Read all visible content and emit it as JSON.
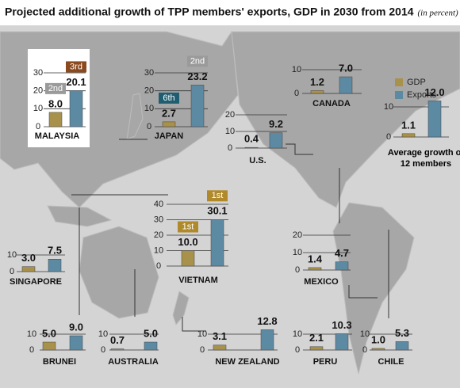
{
  "title": "Projected additional growth of TPP members' exports, GDP in 2030 from 2014",
  "subtitle": "(in percent)",
  "legend": {
    "categories": [
      "GDP",
      "Exports"
    ],
    "colors": [
      "#a8914a",
      "#5d8aa3"
    ]
  },
  "chart_data": [
    {
      "type": "bar",
      "title": "MALAYSIA",
      "values": [
        8.0,
        20.1
      ],
      "value_labels": [
        "8.0",
        "20.1"
      ],
      "ylim": [
        0,
        30
      ],
      "yticks": [
        0,
        10,
        20,
        30
      ],
      "rank_labels": [
        "2nd",
        "3rd"
      ],
      "rank_colors": [
        "#9a9a9a",
        "#8b4a1e"
      ]
    },
    {
      "type": "bar",
      "title": "JAPAN",
      "values": [
        2.7,
        23.2
      ],
      "value_labels": [
        "2.7",
        "23.2"
      ],
      "ylim": [
        0,
        30
      ],
      "yticks": [
        0,
        10,
        20,
        30
      ],
      "rank_labels": [
        "6th",
        "2nd"
      ],
      "rank_colors": [
        "#1f5d70",
        "#9a9a9a"
      ]
    },
    {
      "type": "bar",
      "title": "CANADA",
      "values": [
        1.2,
        7.0
      ],
      "value_labels": [
        "1.2",
        "7.0"
      ],
      "ylim": [
        0,
        10
      ],
      "yticks": [
        0,
        10
      ]
    },
    {
      "type": "bar",
      "title": "Average growth of 12 members",
      "values": [
        1.1,
        12.0
      ],
      "value_labels": [
        "1.1",
        "12.0"
      ],
      "ylim": [
        0,
        13
      ],
      "yticks": [
        0,
        10
      ]
    },
    {
      "type": "bar",
      "title": "U.S.",
      "values": [
        0.4,
        9.2
      ],
      "value_labels": [
        "0.4",
        "9.2"
      ],
      "ylim": [
        0,
        20
      ],
      "yticks": [
        0,
        10,
        20
      ]
    },
    {
      "type": "bar",
      "title": "SINGAPORE",
      "values": [
        3.0,
        7.5
      ],
      "value_labels": [
        "3.0",
        "7.5"
      ],
      "ylim": [
        0,
        10
      ],
      "yticks": [
        0,
        10
      ]
    },
    {
      "type": "bar",
      "title": "VIETNAM",
      "values": [
        10.0,
        30.1
      ],
      "value_labels": [
        "10.0",
        "30.1"
      ],
      "ylim": [
        0,
        40
      ],
      "yticks": [
        0,
        10,
        20,
        30,
        40
      ],
      "rank_labels": [
        "1st",
        "1st"
      ],
      "rank_colors": [
        "#b08a2a",
        "#b08a2a"
      ]
    },
    {
      "type": "bar",
      "title": "MEXICO",
      "values": [
        1.4,
        4.7
      ],
      "value_labels": [
        "1.4",
        "4.7"
      ],
      "ylim": [
        0,
        20
      ],
      "yticks": [
        0,
        10,
        20
      ]
    },
    {
      "type": "bar",
      "title": "BRUNEI",
      "values": [
        5.0,
        9.0
      ],
      "value_labels": [
        "5.0",
        "9.0"
      ],
      "ylim": [
        0,
        10
      ],
      "yticks": [
        0,
        10
      ]
    },
    {
      "type": "bar",
      "title": "AUSTRALIA",
      "values": [
        0.7,
        5.0
      ],
      "value_labels": [
        "0.7",
        "5.0"
      ],
      "ylim": [
        0,
        10
      ],
      "yticks": [
        0,
        10
      ]
    },
    {
      "type": "bar",
      "title": "NEW ZEALAND",
      "values": [
        3.1,
        12.8
      ],
      "value_labels": [
        "3.1",
        "12.8"
      ],
      "ylim": [
        0,
        14
      ],
      "yticks": [
        0,
        10
      ]
    },
    {
      "type": "bar",
      "title": "PERU",
      "values": [
        2.1,
        10.3
      ],
      "value_labels": [
        "2.1",
        "10.3"
      ],
      "ylim": [
        0,
        12
      ],
      "yticks": [
        0,
        10
      ]
    },
    {
      "type": "bar",
      "title": "CHILE",
      "values": [
        1.0,
        5.3
      ],
      "value_labels": [
        "1.0",
        "5.3"
      ],
      "ylim": [
        0,
        10
      ],
      "yticks": [
        0,
        10
      ]
    }
  ]
}
